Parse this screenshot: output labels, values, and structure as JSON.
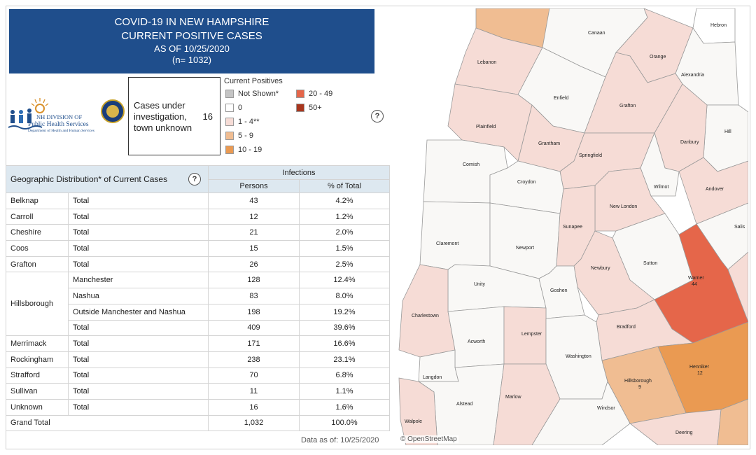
{
  "title": {
    "line1": "COVID-19 IN NEW HAMPSHIRE",
    "line2": "CURRENT POSITIVE CASES",
    "line3": "AS OF 10/25/2020",
    "line4": "(n= 1032)"
  },
  "logo": {
    "line1": "NH DIVISION OF",
    "line2": "Public Health Services",
    "line3": "Department of Health and Human Services"
  },
  "unknown_town": {
    "label": "Cases under investigation, town unknown",
    "value": "16"
  },
  "legend": {
    "title": "Current Positives",
    "items": [
      {
        "label": "Not Shown*",
        "color": "#c4c4c4"
      },
      {
        "label": "0",
        "color": "#ffffff"
      },
      {
        "label": "1 - 4**",
        "color": "#f6dcd6"
      },
      {
        "label": "5 - 9",
        "color": "#f0bd92"
      },
      {
        "label": "10 - 19",
        "color": "#ea9a52"
      },
      {
        "label": "20 - 49",
        "color": "#e5664a"
      },
      {
        "label": "50+",
        "color": "#a8361e"
      }
    ]
  },
  "table": {
    "title": "Geographic Distribution* of Current Cases",
    "group_header": "Infections",
    "col_persons": "Persons",
    "col_pct": "% of Total",
    "rows": [
      {
        "county": "Belknap",
        "sub": "Total",
        "persons": "43",
        "pct": "4.2%"
      },
      {
        "county": "Carroll",
        "sub": "Total",
        "persons": "12",
        "pct": "1.2%"
      },
      {
        "county": "Cheshire",
        "sub": "Total",
        "persons": "21",
        "pct": "2.0%"
      },
      {
        "county": "Coos",
        "sub": "Total",
        "persons": "15",
        "pct": "1.5%"
      },
      {
        "county": "Grafton",
        "sub": "Total",
        "persons": "26",
        "pct": "2.5%"
      },
      {
        "county": "Hillsborough",
        "sub": "Manchester",
        "persons": "128",
        "pct": "12.4%"
      },
      {
        "county": "",
        "sub": "Nashua",
        "persons": "83",
        "pct": "8.0%"
      },
      {
        "county": "",
        "sub": "Outside Manchester and Nashua",
        "persons": "198",
        "pct": "19.2%"
      },
      {
        "county": "",
        "sub": "Total",
        "persons": "409",
        "pct": "39.6%"
      },
      {
        "county": "Merrimack",
        "sub": "Total",
        "persons": "171",
        "pct": "16.6%"
      },
      {
        "county": "Rockingham",
        "sub": "Total",
        "persons": "238",
        "pct": "23.1%"
      },
      {
        "county": "Strafford",
        "sub": "Total",
        "persons": "70",
        "pct": "6.8%"
      },
      {
        "county": "Sullivan",
        "sub": "Total",
        "persons": "11",
        "pct": "1.1%"
      },
      {
        "county": "Unknown",
        "sub": "Total",
        "persons": "16",
        "pct": "1.6%"
      }
    ],
    "grand_total": {
      "label": "Grand Total",
      "persons": "1,032",
      "pct": "100.0%"
    }
  },
  "footer": {
    "data_as_of": "Data as of:  10/25/2020",
    "attribution": "© OpenStreetMap"
  },
  "help_symbol": "?",
  "map": {
    "towns": [
      "Canaan",
      "Hebron",
      "Lebanon",
      "Orange",
      "Alexandria",
      "Enfield",
      "Grafton",
      "Hill",
      "Plainfield",
      "Grantham",
      "Springfield",
      "Danbury",
      "Cornish",
      "Croydon",
      "Wilmot",
      "Andover",
      "New London",
      "Salis",
      "Claremont",
      "Newport",
      "Sunapee",
      "Sutton",
      "Newbury",
      "Unity",
      "Goshen",
      "Charlestown",
      "Warner",
      "Bradford",
      "Acworth",
      "Lempster",
      "Washington",
      "Henniker",
      "Langdon",
      "Hillsborough",
      "Alstead",
      "Marlow",
      "Windsor",
      "Walpole",
      "Deering"
    ],
    "labeled_counts": {
      "Warner": "44",
      "Henniker": "12",
      "Hillsborough": "9"
    }
  }
}
